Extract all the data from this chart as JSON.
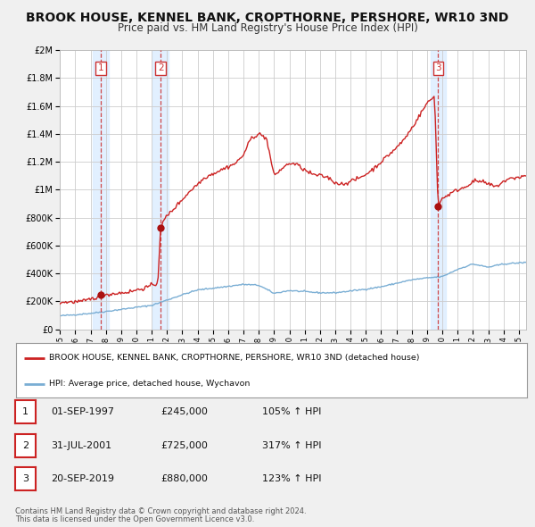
{
  "title": "BROOK HOUSE, KENNEL BANK, CROPTHORNE, PERSHORE, WR10 3ND",
  "subtitle": "Price paid vs. HM Land Registry's House Price Index (HPI)",
  "title_fontsize": 10,
  "subtitle_fontsize": 8.5,
  "sale_dates": [
    1997.67,
    2001.58,
    2019.72
  ],
  "sale_prices": [
    245000,
    725000,
    880000
  ],
  "sale_labels": [
    "1",
    "2",
    "3"
  ],
  "sale_pct": [
    "105% ↑ HPI",
    "317% ↑ HPI",
    "123% ↑ HPI"
  ],
  "sale_date_strs": [
    "01-SEP-1997",
    "31-JUL-2001",
    "20-SEP-2019"
  ],
  "sale_price_strs": [
    "£245,000",
    "£725,000",
    "£880,000"
  ],
  "hpi_color": "#7aaed4",
  "price_color": "#cc2222",
  "sale_marker_color": "#aa1111",
  "sale_vline_color": "#cc3333",
  "sale_band_color": "#ddeeff",
  "ylim": [
    0,
    2000000
  ],
  "yticks": [
    0,
    200000,
    400000,
    600000,
    800000,
    1000000,
    1200000,
    1400000,
    1600000,
    1800000,
    2000000
  ],
  "ytick_labels": [
    "£0",
    "£200K",
    "£400K",
    "£600K",
    "£800K",
    "£1M",
    "£1.2M",
    "£1.4M",
    "£1.6M",
    "£1.8M",
    "£2M"
  ],
  "xlim_start": 1995.0,
  "xlim_end": 2025.5,
  "legend_line1": "BROOK HOUSE, KENNEL BANK, CROPTHORNE, PERSHORE, WR10 3ND (detached house)",
  "legend_line2": "HPI: Average price, detached house, Wychavon",
  "footnote1": "Contains HM Land Registry data © Crown copyright and database right 2024.",
  "footnote2": "This data is licensed under the Open Government Licence v3.0.",
  "background_color": "#f0f0f0",
  "plot_bg_color": "#ffffff",
  "grid_color": "#cccccc"
}
